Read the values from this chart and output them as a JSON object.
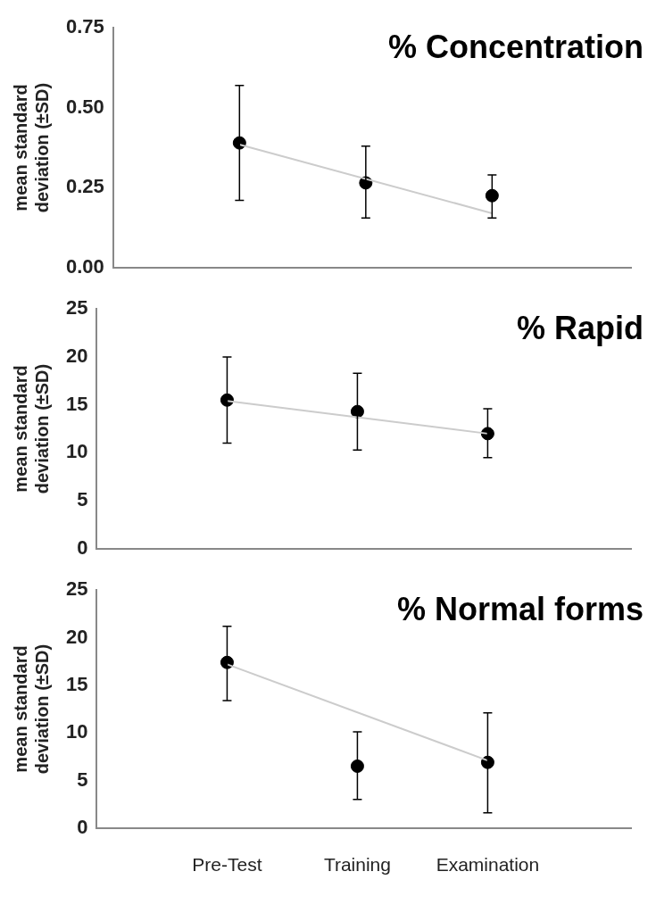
{
  "chart_data": [
    {
      "type": "scatter",
      "title": "% Concentration",
      "ylabel": "mean standard\ndeviation (±SD)",
      "categories": [
        "Pre-Test",
        "Training",
        "Examination"
      ],
      "ylim": [
        0,
        0.75
      ],
      "yticks": [
        {
          "value": 0,
          "label": "0.00"
        },
        {
          "value": 0.25,
          "label": "0.25"
        },
        {
          "value": 0.5,
          "label": "0.50"
        },
        {
          "value": 0.75,
          "label": "0.75"
        }
      ],
      "tick_labels": "y",
      "grid": false,
      "legend": false,
      "series": [
        {
          "type": "line",
          "marker": "none",
          "color": "#cccccc",
          "x": [
            "Pre-Test",
            "Examination"
          ],
          "values": [
            0.385,
            0.17
          ]
        },
        {
          "marker": "circle",
          "color": "#000000",
          "values": [
            0.39,
            0.265,
            0.225
          ],
          "errors": [
            [
              0.21,
              0.57
            ],
            [
              0.155,
              0.38
            ],
            [
              0.155,
              0.29
            ]
          ]
        }
      ]
    },
    {
      "type": "scatter",
      "title": "% Rapid",
      "ylabel": "mean standard\ndeviation (±SD)",
      "categories": [
        "Pre-Test",
        "Training",
        "Examination"
      ],
      "ylim": [
        0,
        25
      ],
      "yticks": [
        0,
        5,
        10,
        15,
        20,
        25
      ],
      "tick_labels": "y",
      "grid": false,
      "legend": false,
      "series": [
        {
          "type": "line",
          "marker": "none",
          "color": "#cccccc",
          "x": [
            "Pre-Test",
            "Examination"
          ],
          "values": [
            15.4,
            12.0
          ]
        },
        {
          "marker": "circle",
          "color": "#000000",
          "values": [
            15.5,
            14.3,
            12.0
          ],
          "errors": [
            [
              11,
              20
            ],
            [
              10.3,
              18.3
            ],
            [
              9.5,
              14.6
            ]
          ]
        }
      ]
    },
    {
      "type": "scatter",
      "title": "% Normal forms",
      "ylabel": "mean standard\ndeviation (±SD)",
      "categories": [
        "Pre-Test",
        "Training",
        "Examination"
      ],
      "ylim": [
        0,
        25
      ],
      "yticks": [
        0,
        5,
        10,
        15,
        20,
        25
      ],
      "grid": false,
      "legend": false,
      "series": [
        {
          "type": "line",
          "marker": "none",
          "color": "#cccccc",
          "x": [
            "Pre-Test",
            "Examination"
          ],
          "values": [
            17.2,
            7.1
          ]
        },
        {
          "marker": "circle",
          "color": "#000000",
          "values": [
            17.4,
            6.5,
            6.9
          ],
          "errors": [
            [
              13.4,
              21.2
            ],
            [
              3,
              10.1
            ],
            [
              1.6,
              12.1
            ]
          ]
        }
      ]
    }
  ]
}
